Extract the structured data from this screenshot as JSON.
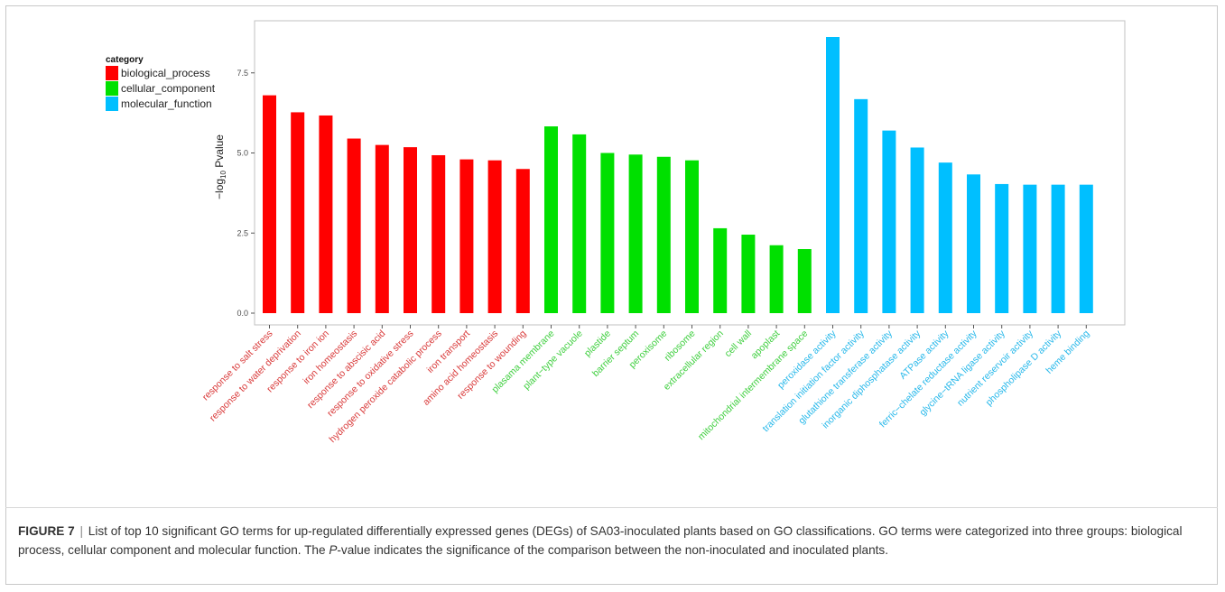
{
  "chart_data": {
    "type": "bar",
    "ylabel_main": "−log",
    "ylabel_sub": "10",
    "ylabel_tail": " Pvalue",
    "ylim": [
      0,
      8.7
    ],
    "yticks": [
      0.0,
      2.5,
      5.0,
      7.5
    ],
    "ytick_labels": [
      "0.0",
      "2.5",
      "5.0",
      "7.5"
    ],
    "grid": false,
    "legend": {
      "title": "category",
      "placement": "top-left",
      "entries": [
        {
          "name": "biological_process",
          "color": "#ff0000"
        },
        {
          "name": "cellular_component",
          "color": "#00e000"
        },
        {
          "name": "molecular_function",
          "color": "#00bfff"
        }
      ]
    },
    "categories": [
      "response to salt stress",
      "response to water deprivation",
      "response to iron ion",
      "iron homeostasis",
      "response to abscisic acid",
      "response to oxidative stress",
      "hydrogen peroxide catabolic process",
      "iron transport",
      "amino acid homeostasis",
      "response to wounding",
      "plasama membrane",
      "plant−type vacuole",
      "plastide",
      "barrier septum",
      "peroxisome",
      "ribosome",
      "extracellular region",
      "cell wall",
      "apoplast",
      "mitochondrial intermembrane space",
      "peroxidase activity",
      "translation initiation factor activity",
      "glutathione transferase activity",
      "inorganic diphosphatase activity",
      "ATPase activity",
      "ferric−chelate reductase activity",
      "glycine−tRNA ligase activity",
      "nutrient reservoir activity",
      "phospholipase D activity",
      "heme binding"
    ],
    "values": [
      6.8,
      6.27,
      6.17,
      5.45,
      5.25,
      5.18,
      4.93,
      4.8,
      4.77,
      4.5,
      5.83,
      5.58,
      5.0,
      4.95,
      4.88,
      4.77,
      2.65,
      2.45,
      2.12,
      2.0,
      8.62,
      6.68,
      5.7,
      5.17,
      4.7,
      4.33,
      4.03,
      4.01,
      4.01,
      4.01
    ],
    "groups": [
      "biological_process",
      "biological_process",
      "biological_process",
      "biological_process",
      "biological_process",
      "biological_process",
      "biological_process",
      "biological_process",
      "biological_process",
      "biological_process",
      "cellular_component",
      "cellular_component",
      "cellular_component",
      "cellular_component",
      "cellular_component",
      "cellular_component",
      "cellular_component",
      "cellular_component",
      "cellular_component",
      "cellular_component",
      "molecular_function",
      "molecular_function",
      "molecular_function",
      "molecular_function",
      "molecular_function",
      "molecular_function",
      "molecular_function",
      "molecular_function",
      "molecular_function",
      "molecular_function"
    ],
    "label_colors": {
      "biological_process": "#d93a3a",
      "cellular_component": "#3fcf3f",
      "molecular_function": "#27b8ea"
    }
  },
  "caption": {
    "figure_label": "FIGURE 7",
    "separator": "|",
    "text_part1": " List of top 10 significant GO terms for up-regulated differentially expressed genes (DEGs) of SA03-inoculated plants based on GO classifications. GO terms were categorized into three groups: biological process, cellular component and molecular function. The ",
    "p_italic": "P",
    "text_part2": "-value indicates the significance of the comparison between the non-inoculated and inoculated plants."
  }
}
